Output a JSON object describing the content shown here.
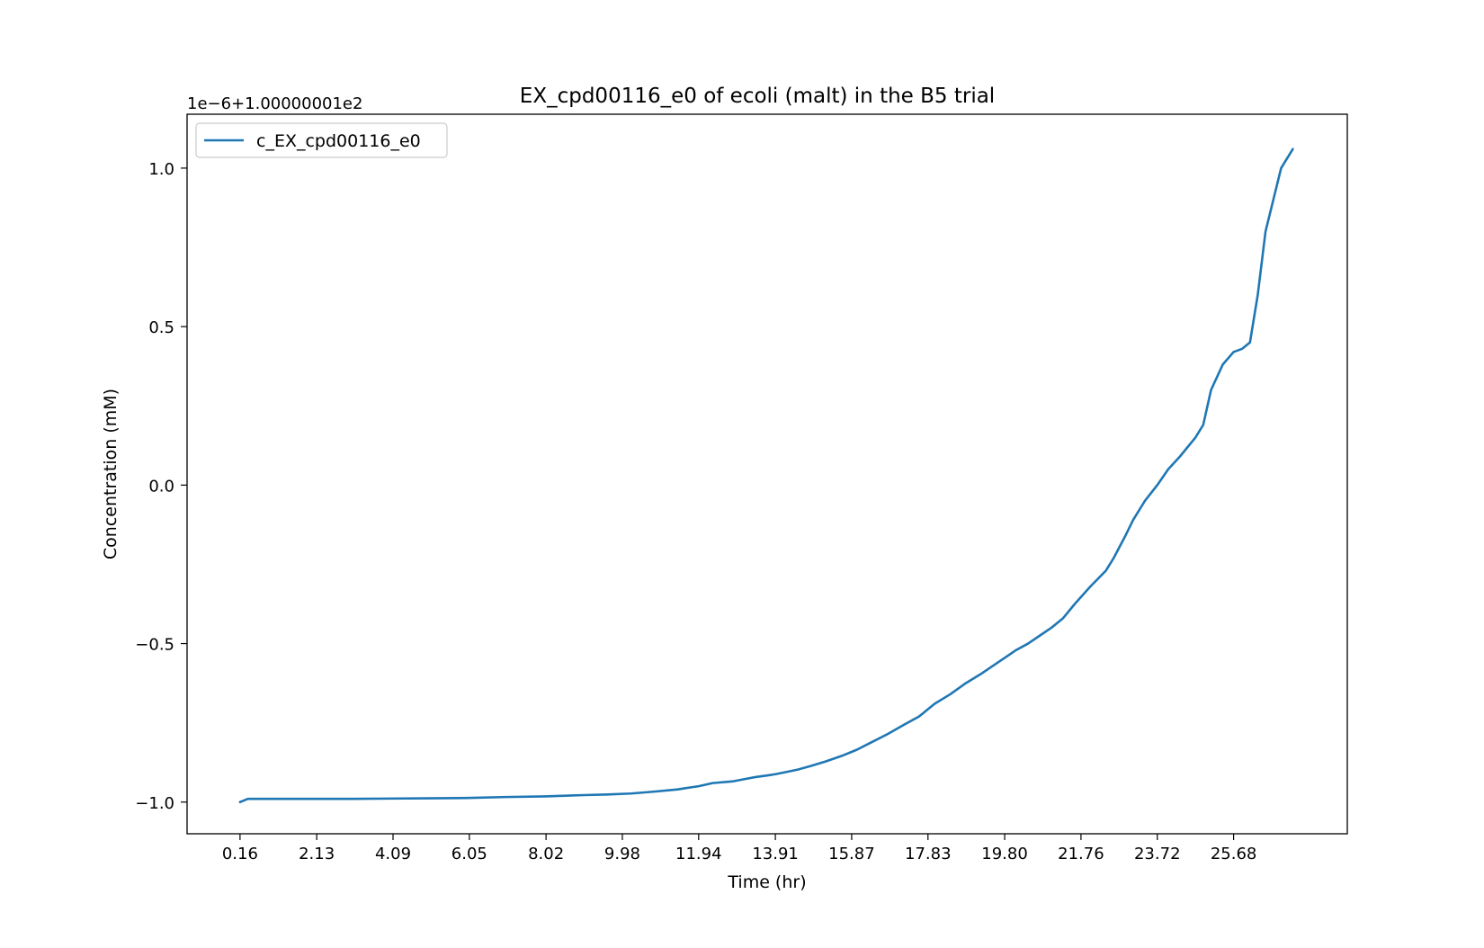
{
  "chart_data": {
    "type": "line",
    "title": "EX_cpd00116_e0 of ecoli (malt) in the B5 trial",
    "xlabel": "Time (hr)",
    "ylabel": "Concentration (mM)",
    "y_offset_label": "1e−6+1.00000001e2",
    "legend_position": "upper-left",
    "grid": false,
    "xlim": [
      -1.2,
      28.6
    ],
    "ylim": [
      -1.1,
      1.17
    ],
    "xticks": [
      0.16,
      2.13,
      4.09,
      6.05,
      8.02,
      9.98,
      11.94,
      13.91,
      15.87,
      17.83,
      19.8,
      21.76,
      23.72,
      25.68
    ],
    "xtick_labels": [
      "0.16",
      "2.13",
      "4.09",
      "6.05",
      "8.02",
      "9.98",
      "11.94",
      "13.91",
      "15.87",
      "17.83",
      "19.80",
      "21.76",
      "23.72",
      "25.68"
    ],
    "yticks": [
      -1.0,
      -0.5,
      0.0,
      0.5,
      1.0
    ],
    "ytick_labels": [
      "−1.0",
      "−0.5",
      "0.0",
      "0.5",
      "1.0"
    ],
    "series": [
      {
        "name": "c_EX_cpd00116_e0",
        "color": "#1f77b4",
        "x": [
          0.16,
          0.36,
          0.56,
          1.0,
          2.0,
          3.0,
          4.0,
          5.0,
          6.0,
          7.0,
          8.0,
          9.0,
          9.6,
          10.2,
          10.8,
          11.4,
          11.94,
          12.3,
          12.8,
          13.1,
          13.4,
          13.7,
          13.91,
          14.2,
          14.5,
          14.8,
          15.2,
          15.6,
          16.0,
          16.4,
          16.8,
          17.2,
          17.6,
          18.0,
          18.4,
          18.8,
          19.2,
          19.5,
          19.8,
          20.1,
          20.4,
          20.7,
          21.0,
          21.3,
          21.6,
          22.0,
          22.4,
          22.6,
          22.9,
          23.1,
          23.4,
          23.72,
          24.0,
          24.3,
          24.7,
          24.9,
          25.1,
          25.4,
          25.68,
          25.9,
          26.1,
          26.3,
          26.5,
          26.9,
          27.2
        ],
        "y": [
          -1.0,
          -0.99,
          -0.99,
          -0.99,
          -0.99,
          -0.99,
          -0.989,
          -0.988,
          -0.987,
          -0.984,
          -0.982,
          -0.978,
          -0.976,
          -0.973,
          -0.967,
          -0.96,
          -0.95,
          -0.94,
          -0.935,
          -0.928,
          -0.921,
          -0.916,
          -0.912,
          -0.905,
          -0.897,
          -0.887,
          -0.872,
          -0.855,
          -0.835,
          -0.81,
          -0.785,
          -0.757,
          -0.73,
          -0.69,
          -0.66,
          -0.625,
          -0.595,
          -0.57,
          -0.545,
          -0.52,
          -0.5,
          -0.475,
          -0.45,
          -0.42,
          -0.375,
          -0.32,
          -0.27,
          -0.23,
          -0.16,
          -0.11,
          -0.05,
          0.0,
          0.05,
          0.09,
          0.15,
          0.19,
          0.3,
          0.38,
          0.42,
          0.43,
          0.45,
          0.6,
          0.8,
          1.0,
          1.06
        ]
      }
    ]
  }
}
